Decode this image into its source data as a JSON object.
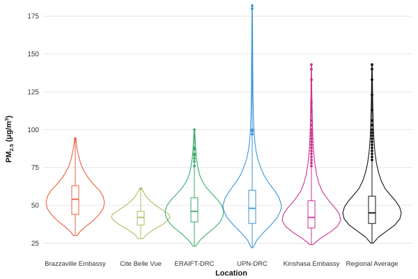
{
  "chart_data": {
    "type": "violin",
    "title": "",
    "xlabel": "Location",
    "ylabel_main": "PM",
    "ylabel_sub": "2.5",
    "ylabel_units_prefix": " (μg/m",
    "ylabel_units_sup": "3",
    "ylabel_units_suffix": ")",
    "ylim": [
      22,
      182
    ],
    "yticks": [
      25,
      50,
      75,
      100,
      125,
      150,
      175
    ],
    "grid": true,
    "series": [
      {
        "name": "Brazzaville Embassy",
        "color": "#e8603c",
        "min": 30,
        "q1": 44,
        "median": 54,
        "q3": 63,
        "max": 94,
        "outliers": [
          94
        ],
        "density": [
          [
            30,
            0.06
          ],
          [
            33,
            0.18
          ],
          [
            36,
            0.36
          ],
          [
            40,
            0.62
          ],
          [
            44,
            0.82
          ],
          [
            48,
            0.96
          ],
          [
            52,
            1.0
          ],
          [
            56,
            0.95
          ],
          [
            60,
            0.82
          ],
          [
            64,
            0.62
          ],
          [
            68,
            0.45
          ],
          [
            72,
            0.32
          ],
          [
            76,
            0.22
          ],
          [
            80,
            0.15
          ],
          [
            84,
            0.1
          ],
          [
            88,
            0.06
          ],
          [
            92,
            0.03
          ],
          [
            94,
            0.01
          ]
        ]
      },
      {
        "name": "Cite Belle Vue",
        "color": "#b5b860",
        "min": 28,
        "q1": 37,
        "median": 42,
        "q3": 46,
        "max": 61,
        "outliers": [
          61
        ],
        "density": [
          [
            28,
            0.08
          ],
          [
            31,
            0.22
          ],
          [
            34,
            0.45
          ],
          [
            37,
            0.72
          ],
          [
            40,
            0.92
          ],
          [
            42,
            1.0
          ],
          [
            44,
            0.97
          ],
          [
            46,
            0.82
          ],
          [
            49,
            0.58
          ],
          [
            52,
            0.38
          ],
          [
            55,
            0.22
          ],
          [
            58,
            0.12
          ],
          [
            61,
            0.04
          ]
        ]
      },
      {
        "name": "ERAIFT-DRC",
        "color": "#3aab6c",
        "min": 23,
        "q1": 39,
        "median": 46,
        "q3": 55,
        "max": 100,
        "outliers": [
          76,
          79,
          81,
          83,
          84,
          87,
          88,
          100
        ],
        "density": [
          [
            23,
            0.04
          ],
          [
            27,
            0.2
          ],
          [
            31,
            0.42
          ],
          [
            35,
            0.68
          ],
          [
            39,
            0.88
          ],
          [
            43,
            0.98
          ],
          [
            46,
            1.0
          ],
          [
            50,
            0.93
          ],
          [
            54,
            0.78
          ],
          [
            58,
            0.58
          ],
          [
            62,
            0.4
          ],
          [
            66,
            0.27
          ],
          [
            70,
            0.18
          ],
          [
            75,
            0.12
          ],
          [
            80,
            0.08
          ],
          [
            86,
            0.05
          ],
          [
            92,
            0.03
          ],
          [
            100,
            0.01
          ]
        ]
      },
      {
        "name": "UPN-DRC",
        "color": "#3a95d6",
        "min": 22,
        "q1": 38,
        "median": 48,
        "q3": 60,
        "max": 182,
        "outliers": [
          97,
          99,
          100,
          180,
          182
        ],
        "density": [
          [
            22,
            0.03
          ],
          [
            27,
            0.16
          ],
          [
            32,
            0.38
          ],
          [
            37,
            0.64
          ],
          [
            42,
            0.86
          ],
          [
            47,
            0.98
          ],
          [
            50,
            1.0
          ],
          [
            55,
            0.92
          ],
          [
            60,
            0.76
          ],
          [
            65,
            0.56
          ],
          [
            70,
            0.4
          ],
          [
            75,
            0.29
          ],
          [
            80,
            0.2
          ],
          [
            86,
            0.13
          ],
          [
            92,
            0.09
          ],
          [
            100,
            0.06
          ],
          [
            110,
            0.04
          ],
          [
            125,
            0.025
          ],
          [
            145,
            0.018
          ],
          [
            165,
            0.012
          ],
          [
            182,
            0.005
          ]
        ]
      },
      {
        "name": "Kinshasa Embassy",
        "color": "#c9328f",
        "min": 24,
        "q1": 35,
        "median": 42,
        "q3": 53,
        "max": 143,
        "outliers": [
          76,
          78,
          80,
          82,
          84,
          86,
          88,
          90,
          92,
          94,
          96,
          98,
          100,
          103,
          106,
          112,
          118,
          133,
          140,
          143
        ],
        "density": [
          [
            24,
            0.05
          ],
          [
            28,
            0.3
          ],
          [
            32,
            0.62
          ],
          [
            36,
            0.88
          ],
          [
            40,
            1.0
          ],
          [
            44,
            0.96
          ],
          [
            48,
            0.82
          ],
          [
            52,
            0.64
          ],
          [
            56,
            0.48
          ],
          [
            60,
            0.35
          ],
          [
            65,
            0.25
          ],
          [
            70,
            0.18
          ],
          [
            76,
            0.13
          ],
          [
            82,
            0.09
          ],
          [
            90,
            0.06
          ],
          [
            100,
            0.04
          ],
          [
            112,
            0.025
          ],
          [
            125,
            0.015
          ],
          [
            143,
            0.005
          ]
        ]
      },
      {
        "name": "Regional Average",
        "color": "#111111",
        "min": 25,
        "q1": 38,
        "median": 45,
        "q3": 56,
        "max": 143,
        "outliers": [
          80,
          82,
          84,
          86,
          88,
          90,
          92,
          94,
          96,
          98,
          100,
          103,
          106,
          113,
          123,
          133,
          140,
          143
        ],
        "density": [
          [
            25,
            0.04
          ],
          [
            29,
            0.22
          ],
          [
            33,
            0.5
          ],
          [
            37,
            0.78
          ],
          [
            41,
            0.95
          ],
          [
            45,
            1.0
          ],
          [
            49,
            0.94
          ],
          [
            53,
            0.8
          ],
          [
            57,
            0.62
          ],
          [
            61,
            0.45
          ],
          [
            66,
            0.32
          ],
          [
            72,
            0.22
          ],
          [
            78,
            0.15
          ],
          [
            85,
            0.1
          ],
          [
            95,
            0.06
          ],
          [
            105,
            0.04
          ],
          [
            118,
            0.025
          ],
          [
            130,
            0.015
          ],
          [
            143,
            0.005
          ]
        ]
      }
    ]
  }
}
